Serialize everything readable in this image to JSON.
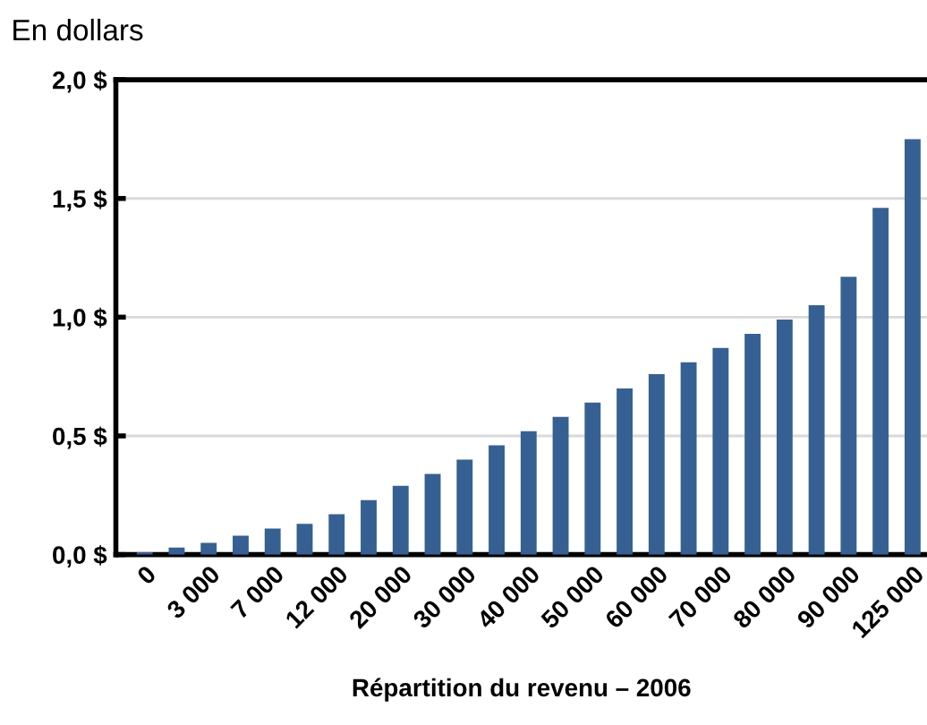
{
  "chart_data": {
    "type": "bar",
    "ylabel": "En dollars",
    "xlabel": "Répartition du revenu – 2006",
    "categories": [
      "0",
      null,
      "3 000",
      null,
      "7 000",
      null,
      "12 000",
      null,
      "20 000",
      null,
      "30 000",
      null,
      "40 000",
      null,
      "50 000",
      null,
      "60 000",
      null,
      "70 000",
      null,
      "80 000",
      null,
      "90 000",
      null,
      "125 000"
    ],
    "values": [
      0.01,
      0.03,
      0.05,
      0.08,
      0.11,
      0.13,
      0.17,
      0.23,
      0.29,
      0.34,
      0.4,
      0.46,
      0.52,
      0.58,
      0.64,
      0.7,
      0.76,
      0.81,
      0.87,
      0.93,
      0.99,
      1.05,
      1.17,
      1.46,
      1.75
    ],
    "color": "#376092",
    "ylim": [
      0,
      2
    ],
    "yticks": [
      {
        "value": 0,
        "label": "0,0 $"
      },
      {
        "value": 0.5,
        "label": "0,5 $"
      },
      {
        "value": 1,
        "label": "1,0 $"
      },
      {
        "value": 1.5,
        "label": "1,5 $"
      },
      {
        "value": 2,
        "label": "2,0 $"
      }
    ],
    "grid": "y",
    "legend": false
  }
}
